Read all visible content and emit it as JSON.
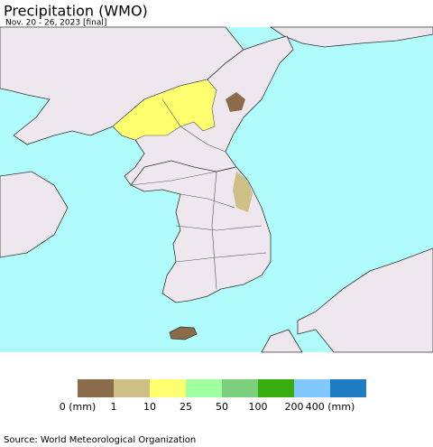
{
  "header": {
    "title": "Precipitation (WMO)",
    "subtitle": "Nov. 20 - 26, 2023 [final]"
  },
  "legend": {
    "colors": [
      "#8b6c4a",
      "#cdbf86",
      "#ffff70",
      "#a0ffa0",
      "#7ccf7c",
      "#38ad10",
      "#80c8ff",
      "#1e7cc2"
    ],
    "labels": [
      "0 (mm)",
      "1",
      "10",
      "25",
      "50",
      "100",
      "200",
      "400 (mm)"
    ]
  },
  "footer": {
    "source": "Source: World Meteorological Organization"
  }
}
